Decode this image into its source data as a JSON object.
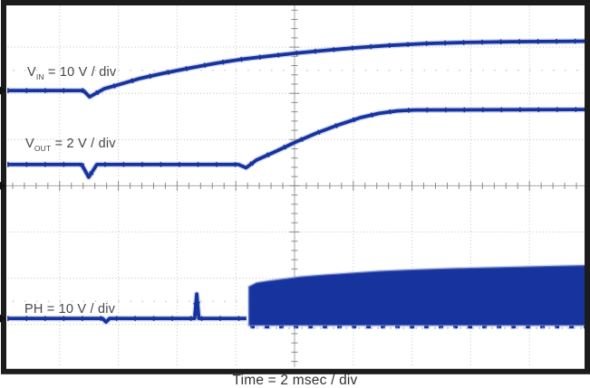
{
  "figure": {
    "labels": {
      "vin": {
        "sym": "V",
        "sub": "IN",
        "rest": " = 10 V / div"
      },
      "vout": {
        "sym": "V",
        "sub": "OUT",
        "rest": " = 2 V / div"
      },
      "ph": {
        "sym": "PH",
        "sub": "",
        "rest": " = 10 V / div"
      }
    }
  },
  "colors": {
    "background": "#ffffff",
    "trace": "#16339e",
    "trace_fringe": "#a9b4e0",
    "grid_dots": "#c6c6c6",
    "center_line": "#a6a6a6",
    "tick": "#8a8a8a",
    "frame": "#1c1c1c",
    "label_text": "#474747",
    "title_text": "#333333"
  },
  "chart_data": {
    "type": "line",
    "title": "",
    "xlabel": "Time = 2 msec / div",
    "ylabel": "",
    "time_per_div_ms": 2,
    "x_divisions": 10,
    "y_divisions": 8,
    "x_range_ms": [
      0,
      20
    ],
    "minor_ticks_per_div": 5,
    "percent_marker_rows_div_from_top": [
      1.5,
      6.5
    ],
    "series": [
      {
        "name": "VIN",
        "label": "VIN = 10 V / div",
        "v_per_div": 10,
        "ref_level_div_from_top": 1.94,
        "points_t_v": [
          [
            0.22,
            0
          ],
          [
            2.81,
            0
          ],
          [
            3.02,
            -1.37
          ],
          [
            3.52,
            0.39
          ],
          [
            4.07,
            1.37
          ],
          [
            4.75,
            2.64
          ],
          [
            5.52,
            3.72
          ],
          [
            6.45,
            4.89
          ],
          [
            7.38,
            5.97
          ],
          [
            8.3,
            6.85
          ],
          [
            9.23,
            7.53
          ],
          [
            10.09,
            8.12
          ],
          [
            11.08,
            8.71
          ],
          [
            12.16,
            9.3
          ],
          [
            13.24,
            9.78
          ],
          [
            14.48,
            10.18
          ],
          [
            15.86,
            10.41
          ],
          [
            17.41,
            10.57
          ],
          [
            20.0,
            10.7
          ]
        ]
      },
      {
        "name": "VOUT",
        "label": "VOUT = 2 V / div",
        "v_per_div": 2,
        "ref_level_div_from_top": 4.0,
        "points_t_v": [
          [
            0.22,
            0.92
          ],
          [
            2.75,
            0.92
          ],
          [
            2.99,
            0.37
          ],
          [
            3.27,
            0.92
          ],
          [
            8.09,
            0.92
          ],
          [
            8.35,
            0.78
          ],
          [
            8.7,
            1.11
          ],
          [
            9.38,
            1.5
          ],
          [
            10.03,
            1.89
          ],
          [
            10.77,
            2.29
          ],
          [
            11.51,
            2.64
          ],
          [
            12.25,
            2.95
          ],
          [
            12.87,
            3.13
          ],
          [
            13.49,
            3.24
          ],
          [
            14.1,
            3.28
          ],
          [
            20.0,
            3.3
          ]
        ]
      },
      {
        "name": "PH",
        "label": "PH = 10 V / div",
        "v_per_div": 10,
        "ref_level_div_from_top": 6.87,
        "points_t_v": [
          [
            0.22,
            0
          ],
          [
            3.46,
            0
          ],
          [
            3.58,
            -0.78
          ],
          [
            3.7,
            0
          ],
          [
            6.6,
            0
          ],
          [
            6.67,
            5.28
          ],
          [
            6.74,
            0
          ],
          [
            8.36,
            0
          ]
        ],
        "switching_band": {
          "t_start": 8.43,
          "t_end": 20.0,
          "bottom_v": -1.6,
          "top_points_t_v": [
            [
              8.43,
              6.9
            ],
            [
              8.7,
              7.8
            ],
            [
              9.1,
              8.2
            ],
            [
              9.6,
              8.6
            ],
            [
              10.2,
              9.1
            ],
            [
              11.0,
              9.5
            ],
            [
              11.9,
              9.9
            ],
            [
              12.9,
              10.3
            ],
            [
              14.0,
              10.6
            ],
            [
              15.15,
              10.85
            ],
            [
              16.4,
              11.05
            ],
            [
              17.75,
              11.25
            ],
            [
              19.2,
              11.45
            ],
            [
              20.0,
              11.55
            ]
          ]
        }
      }
    ]
  }
}
